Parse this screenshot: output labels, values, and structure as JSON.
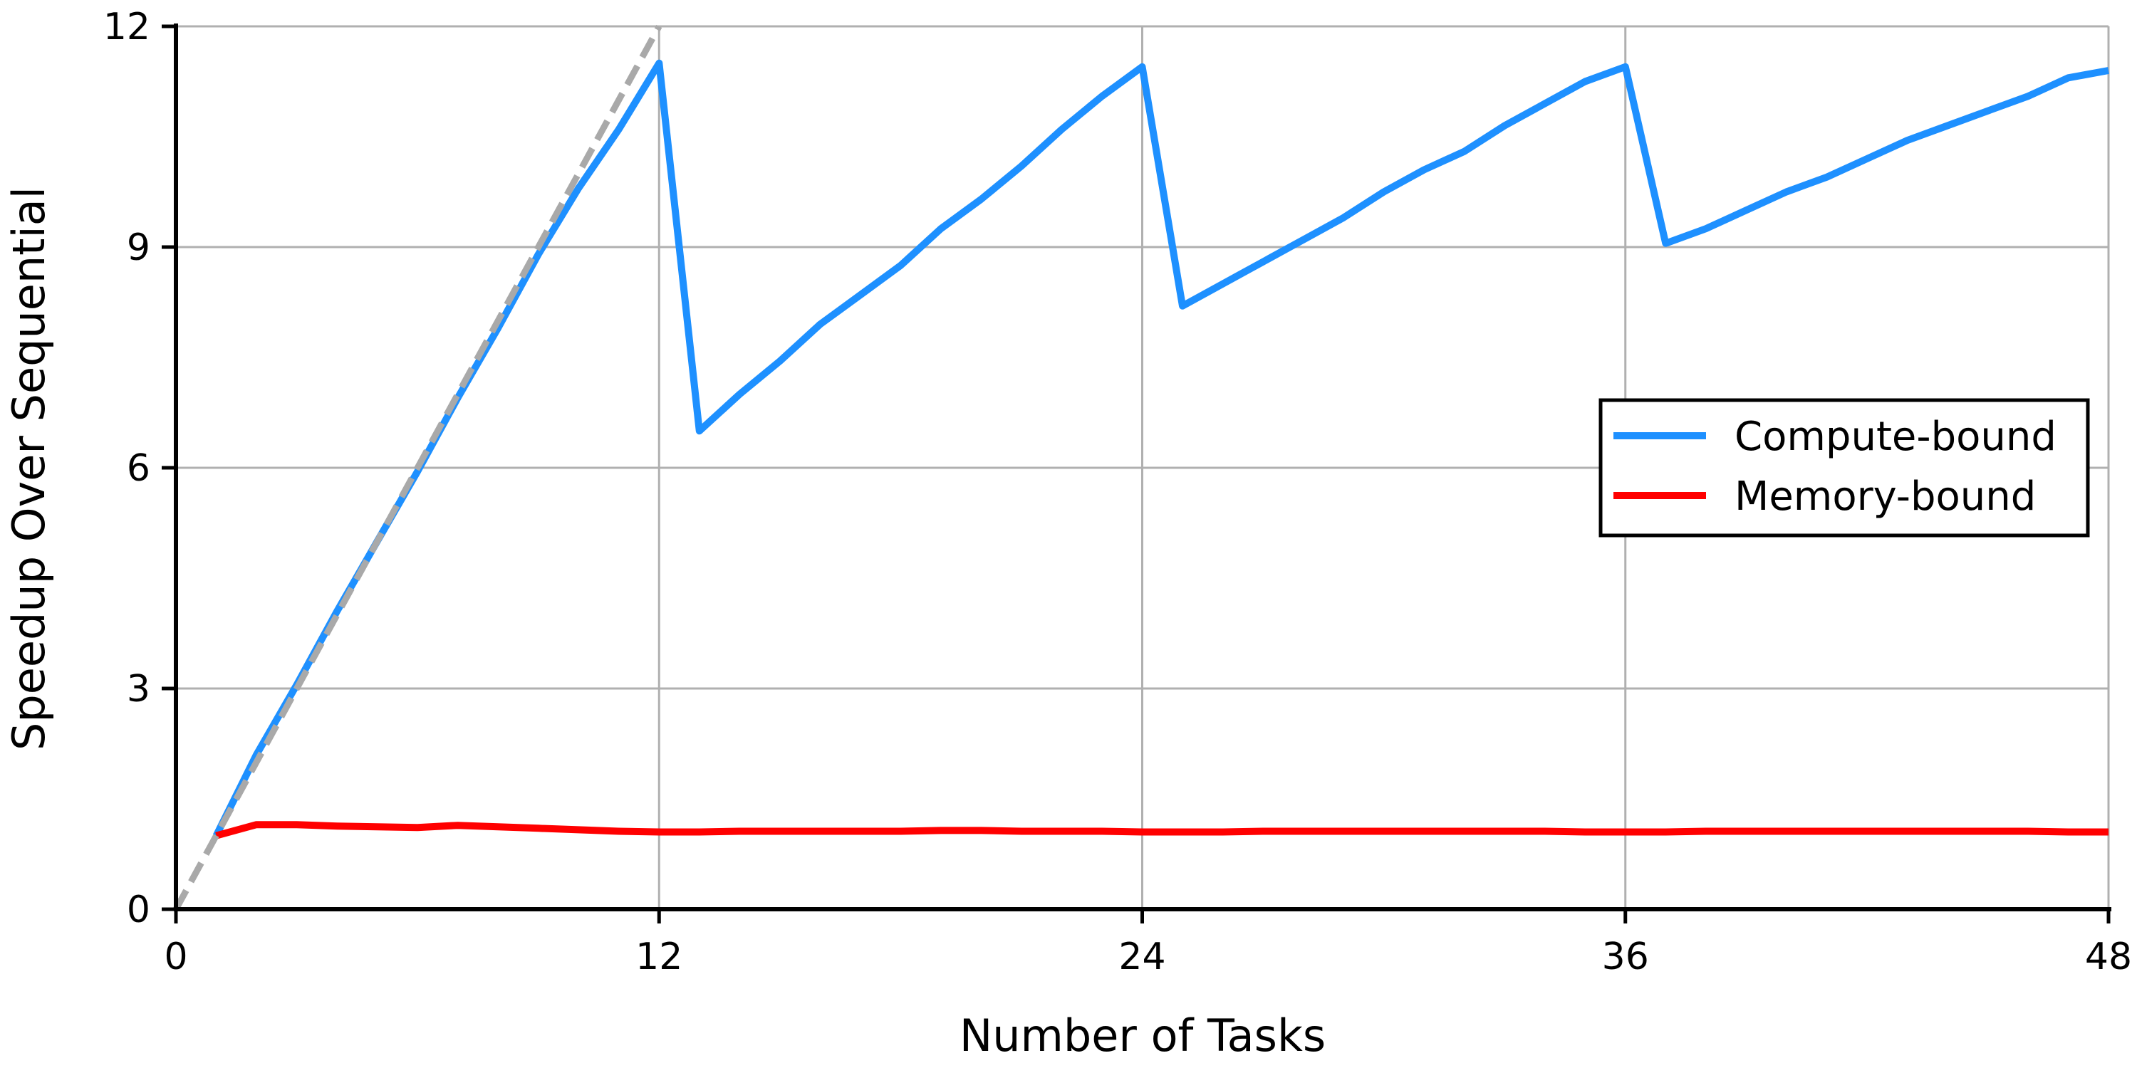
{
  "chart_data": {
    "type": "line",
    "xlabel": "Number of Tasks",
    "ylabel": "Speedup Over Sequential",
    "xlim": [
      0,
      48
    ],
    "ylim": [
      0,
      12
    ],
    "xticks": [
      0,
      12,
      24,
      36,
      48
    ],
    "yticks": [
      0,
      3,
      6,
      9,
      12
    ],
    "grid": true,
    "legend_position": "center-right",
    "series": [
      {
        "name": "Compute-bound",
        "color": "#1e90ff",
        "x": [
          1,
          2,
          3,
          4,
          5,
          6,
          7,
          8,
          9,
          10,
          11,
          12,
          13,
          14,
          15,
          16,
          17,
          18,
          19,
          20,
          21,
          22,
          23,
          24,
          25,
          26,
          27,
          28,
          29,
          30,
          31,
          32,
          33,
          34,
          35,
          36,
          37,
          38,
          39,
          40,
          41,
          42,
          43,
          44,
          45,
          46,
          47,
          48
        ],
        "values": [
          1.0,
          2.1,
          3.05,
          4.05,
          5.0,
          5.95,
          6.95,
          7.9,
          8.9,
          9.8,
          10.6,
          11.5,
          6.5,
          7.0,
          7.45,
          7.95,
          8.35,
          8.75,
          9.25,
          9.65,
          10.1,
          10.6,
          11.05,
          11.45,
          8.2,
          8.5,
          8.8,
          9.1,
          9.4,
          9.75,
          10.05,
          10.3,
          10.65,
          10.95,
          11.25,
          11.45,
          9.05,
          9.25,
          9.5,
          9.75,
          9.95,
          10.2,
          10.45,
          10.65,
          10.85,
          11.05,
          11.3,
          11.4
        ]
      },
      {
        "name": "Memory-bound",
        "color": "#ff0000",
        "x": [
          1,
          2,
          3,
          4,
          5,
          6,
          7,
          8,
          9,
          10,
          11,
          12,
          13,
          14,
          15,
          16,
          17,
          18,
          19,
          20,
          21,
          22,
          23,
          24,
          25,
          26,
          27,
          28,
          29,
          30,
          31,
          32,
          33,
          34,
          35,
          36,
          37,
          38,
          39,
          40,
          41,
          42,
          43,
          44,
          45,
          46,
          47,
          48
        ],
        "values": [
          1.0,
          1.15,
          1.15,
          1.13,
          1.12,
          1.11,
          1.14,
          1.12,
          1.1,
          1.08,
          1.06,
          1.05,
          1.05,
          1.06,
          1.06,
          1.06,
          1.06,
          1.06,
          1.07,
          1.07,
          1.06,
          1.06,
          1.06,
          1.05,
          1.05,
          1.05,
          1.06,
          1.06,
          1.06,
          1.06,
          1.06,
          1.06,
          1.06,
          1.06,
          1.05,
          1.05,
          1.05,
          1.06,
          1.06,
          1.06,
          1.06,
          1.06,
          1.06,
          1.06,
          1.06,
          1.06,
          1.05,
          1.05
        ]
      },
      {
        "color": "#a9a9a9",
        "style": "dashed",
        "x": [
          0,
          12
        ],
        "values": [
          0,
          12
        ]
      }
    ]
  }
}
